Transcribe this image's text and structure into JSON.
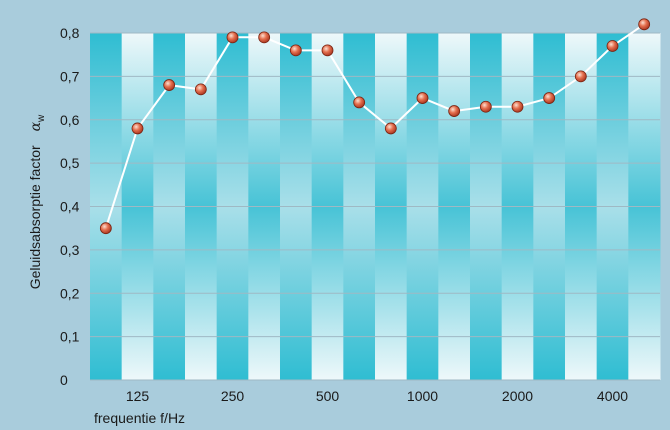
{
  "chart_data": {
    "type": "line",
    "title": "",
    "xlabel": "frequentie f/Hz",
    "ylabel": "Geluidsabsorptie factor",
    "ylabel_symbol": "α",
    "ylabel_subscript": "w",
    "x_tick_labels": [
      "125",
      "250",
      "500",
      "1000",
      "2000",
      "4000"
    ],
    "y_tick_labels": [
      "0",
      "0,1",
      "0,2",
      "0,3",
      "0,4",
      "0,5",
      "0,6",
      "0,7",
      "0,8"
    ],
    "ylim": [
      0,
      0.8
    ],
    "x_scale": "third-octave bands",
    "x": [
      "100",
      "125",
      "160",
      "200",
      "250",
      "315",
      "400",
      "500",
      "630",
      "800",
      "1000",
      "1250",
      "1600",
      "2000",
      "2500",
      "3150",
      "4000",
      "5000"
    ],
    "series": [
      {
        "values": [
          0.35,
          0.58,
          0.68,
          0.67,
          0.79,
          0.79,
          0.76,
          0.76,
          0.64,
          0.58,
          0.65,
          0.62,
          0.63,
          0.63,
          0.65,
          0.7,
          0.77,
          0.82
        ]
      }
    ],
    "grid": true,
    "colors": {
      "background": "#a9ccdc",
      "band_dark": "#2fbdd2",
      "band_light": "#eef8fa",
      "line": "#ffffff",
      "marker": "#d9583c"
    }
  }
}
